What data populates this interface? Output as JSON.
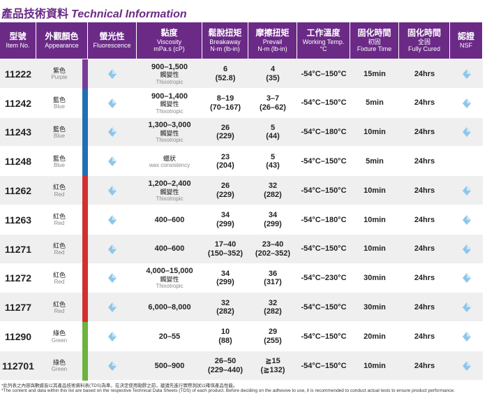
{
  "header": {
    "title_zh": "產品技術資料",
    "title_en": "Technical Information"
  },
  "table": {
    "columns": [
      {
        "zh": [
          "型號"
        ],
        "en": "Item No."
      },
      {
        "zh": [
          "外觀顏色"
        ],
        "en": "Appearance"
      },
      {
        "zh": [
          "螢光性"
        ],
        "en": "Fluorescence"
      },
      {
        "zh": [
          "黏度",
          "Viscosity"
        ],
        "en": "mPa.s (cP)"
      },
      {
        "zh": [
          "鬆脫扭矩",
          "Breakaway"
        ],
        "en": "N-m (lb-in)"
      },
      {
        "zh": [
          "摩擦扭矩",
          "Prevail"
        ],
        "en": "N-m (lb-in)"
      },
      {
        "zh": [
          "工作溫度",
          "Working Temp."
        ],
        "en": "°C"
      },
      {
        "zh": [
          "固化時間",
          "初固"
        ],
        "en": "Fixture Time"
      },
      {
        "zh": [
          "固化時間",
          "全固"
        ],
        "en": "Fully Cured"
      },
      {
        "zh": [
          "認證"
        ],
        "en": "NSF"
      }
    ],
    "rows": [
      {
        "item": "11222",
        "color_zh": "紫色",
        "color_en": "Purple",
        "stripe": "#7b3c97",
        "fluorescence": true,
        "viscosity": {
          "value": "900–1,500",
          "note_zh": "觸變性",
          "note_en": "Thixotropic"
        },
        "breakaway": [
          "6",
          "(52.8)"
        ],
        "prevail": [
          "4",
          "(35)"
        ],
        "temp": "-54°C–150°C",
        "fixture": "15min",
        "cured": "24hrs",
        "nsf": true
      },
      {
        "item": "11242",
        "color_zh": "藍色",
        "color_en": "Blue",
        "stripe": "#1f6fb5",
        "fluorescence": true,
        "viscosity": {
          "value": "900–1,400",
          "note_zh": "觸變性",
          "note_en": "Thixotropic"
        },
        "breakaway": [
          "8–19",
          "(70–167)"
        ],
        "prevail": [
          "3–7",
          "(26–62)"
        ],
        "temp": "-54°C–150°C",
        "fixture": "5min",
        "cured": "24hrs",
        "nsf": true
      },
      {
        "item": "11243",
        "color_zh": "藍色",
        "color_en": "Blue",
        "stripe": "#1f6fb5",
        "fluorescence": true,
        "viscosity": {
          "value": "1,300–3,000",
          "note_zh": "觸變性",
          "note_en": "Thixotropic"
        },
        "breakaway": [
          "26",
          "(229)"
        ],
        "prevail": [
          "5",
          "(44)"
        ],
        "temp": "-54°C–180°C",
        "fixture": "10min",
        "cured": "24hrs",
        "nsf": true
      },
      {
        "item": "11248",
        "color_zh": "藍色",
        "color_en": "Blue",
        "stripe": "#1f6fb5",
        "fluorescence": true,
        "viscosity": {
          "note_zh": "蠟狀",
          "note_en": "wax consistency"
        },
        "breakaway": [
          "23",
          "(204)"
        ],
        "prevail": [
          "5",
          "(43)"
        ],
        "temp": "-54°C–150°C",
        "fixture": "5min",
        "cured": "24hrs",
        "nsf": false
      },
      {
        "item": "11262",
        "color_zh": "紅色",
        "color_en": "Red",
        "stripe": "#d32f2f",
        "fluorescence": true,
        "viscosity": {
          "value": "1,200–2,400",
          "note_zh": "觸變性",
          "note_en": "Thixotropic"
        },
        "breakaway": [
          "26",
          "(229)"
        ],
        "prevail": [
          "32",
          "(282)"
        ],
        "temp": "-54°C–150°C",
        "fixture": "10min",
        "cured": "24hrs",
        "nsf": true
      },
      {
        "item": "11263",
        "color_zh": "紅色",
        "color_en": "Red",
        "stripe": "#d32f2f",
        "fluorescence": true,
        "viscosity": {
          "value": "400–600"
        },
        "breakaway": [
          "34",
          "(299)"
        ],
        "prevail": [
          "34",
          "(299)"
        ],
        "temp": "-54°C–180°C",
        "fixture": "10min",
        "cured": "24hrs",
        "nsf": true
      },
      {
        "item": "11271",
        "color_zh": "紅色",
        "color_en": "Red",
        "stripe": "#d32f2f",
        "fluorescence": true,
        "viscosity": {
          "value": "400–600"
        },
        "breakaway": [
          "17–40",
          "(150–352)"
        ],
        "prevail": [
          "23–40",
          "(202–352)"
        ],
        "temp": "-54°C–150°C",
        "fixture": "10min",
        "cured": "24hrs",
        "nsf": true
      },
      {
        "item": "11272",
        "color_zh": "紅色",
        "color_en": "Red",
        "stripe": "#d32f2f",
        "fluorescence": true,
        "viscosity": {
          "value": "4,000–15,000",
          "note_zh": "觸變性",
          "note_en": "Thixotropic"
        },
        "breakaway": [
          "34",
          "(299)"
        ],
        "prevail": [
          "36",
          "(317)"
        ],
        "temp": "-54°C–230°C",
        "fixture": "30min",
        "cured": "24hrs",
        "nsf": true
      },
      {
        "item": "11277",
        "color_zh": "紅色",
        "color_en": "Red",
        "stripe": "#d32f2f",
        "fluorescence": true,
        "viscosity": {
          "value": "6,000–8,000"
        },
        "breakaway": [
          "32",
          "(282)"
        ],
        "prevail": [
          "32",
          "(282)"
        ],
        "temp": "-54°C–150°C",
        "fixture": "30min",
        "cured": "24hrs",
        "nsf": true
      },
      {
        "item": "11290",
        "color_zh": "綠色",
        "color_en": "Green",
        "stripe": "#6db33f",
        "fluorescence": true,
        "viscosity": {
          "value": "20–55"
        },
        "breakaway": [
          "10",
          "(88)"
        ],
        "prevail": [
          "29",
          "(255)"
        ],
        "temp": "-54°C–150°C",
        "fixture": "20min",
        "cured": "24hrs",
        "nsf": true
      },
      {
        "item": "112701",
        "color_zh": "綠色",
        "color_en": "Green",
        "stripe": "#6db33f",
        "fluorescence": true,
        "viscosity": {
          "value": "500–900"
        },
        "breakaway": [
          "26–50",
          "(229–440)"
        ],
        "prevail": [
          "≧15",
          "(≧132)"
        ],
        "temp": "-54°C–150°C",
        "fixture": "10min",
        "cured": "24hrs",
        "nsf": true
      }
    ]
  },
  "footnotes": [
    "*此列表之內容與數據皆以其產品技術資料表(TDS)為準，在決定使用黏膠之前，建議先進行實際測試以確保產品性能。",
    "*The content and data within this list are based on the respective Technical Data Sheets (TDS) of each product. Before deciding on the adhesive to use, it is recommended to conduct actual tests to ensure product performance."
  ]
}
